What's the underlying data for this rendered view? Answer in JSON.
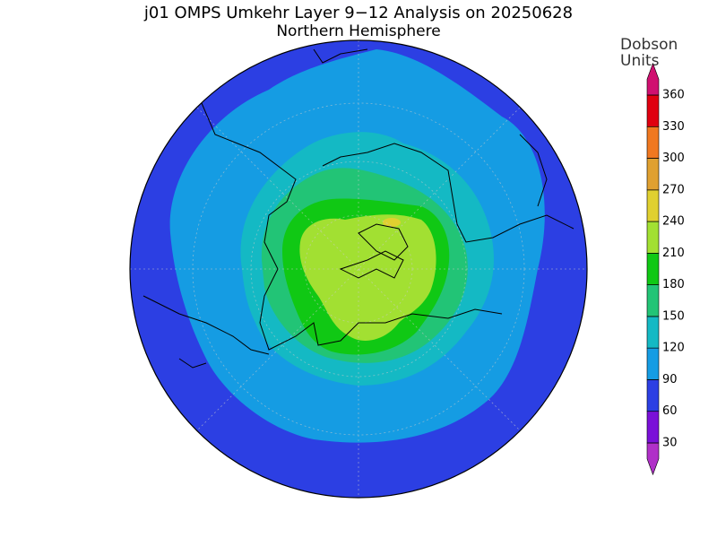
{
  "title": "j01 OMPS Umkehr Layer 9−12 Analysis on 20250628",
  "subtitle": "Northern Hemisphere",
  "colorbar": {
    "label_lines": [
      "Dobson",
      "Units"
    ],
    "ticks": [
      30,
      60,
      90,
      120,
      150,
      180,
      210,
      240,
      270,
      300,
      330,
      360
    ],
    "colors": [
      "#b030c8",
      "#7a10d8",
      "#2c3fe3",
      "#159ce3",
      "#14b9c4",
      "#22c476",
      "#10c814",
      "#a2e032",
      "#e0d030",
      "#e0a030",
      "#f07820",
      "#e00010",
      "#d01070"
    ]
  }
}
